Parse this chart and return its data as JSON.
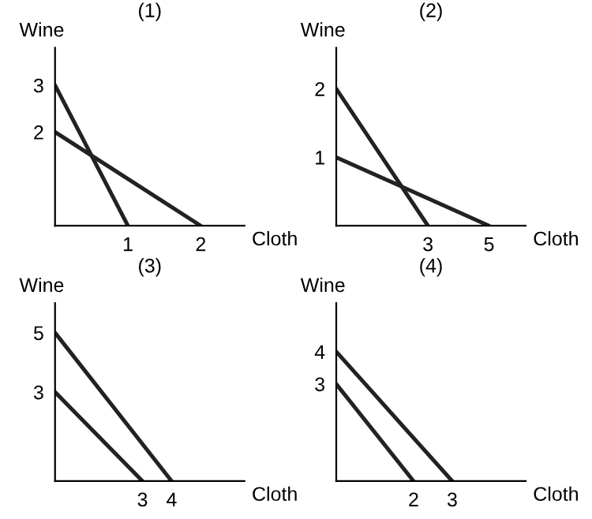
{
  "chart_data": [
    {
      "type": "line",
      "title": "(1)",
      "xlabel": "Cloth",
      "ylabel": "Wine",
      "xlim": [
        0,
        2.6
      ],
      "ylim": [
        0,
        3.8
      ],
      "xticks": [
        1,
        2
      ],
      "yticks": [
        2,
        3
      ],
      "grid": false,
      "legend": false,
      "marker": "none",
      "line_style": "solid",
      "series": [
        {
          "color": "#222222",
          "x": [
            0,
            1
          ],
          "values": [
            3,
            0
          ]
        },
        {
          "color": "#222222",
          "x": [
            0,
            2
          ],
          "values": [
            2,
            0
          ]
        }
      ]
    },
    {
      "type": "line",
      "title": "(2)",
      "xlabel": "Cloth",
      "ylabel": "Wine",
      "xlim": [
        0,
        6.2
      ],
      "ylim": [
        0,
        2.6
      ],
      "xticks": [
        3,
        5
      ],
      "yticks": [
        1,
        2
      ],
      "grid": false,
      "legend": false,
      "marker": "none",
      "line_style": "solid",
      "series": [
        {
          "color": "#222222",
          "x": [
            0,
            3
          ],
          "values": [
            2,
            0
          ]
        },
        {
          "color": "#222222",
          "x": [
            0,
            5
          ],
          "values": [
            1,
            0
          ]
        }
      ]
    },
    {
      "type": "line",
      "title": "(3)",
      "xlabel": "Cloth",
      "ylabel": "Wine",
      "xlim": [
        0,
        6.5
      ],
      "ylim": [
        0,
        6
      ],
      "xticks": [
        3,
        4
      ],
      "yticks": [
        3,
        5
      ],
      "grid": false,
      "legend": false,
      "marker": "none",
      "line_style": "solid",
      "series": [
        {
          "color": "#222222",
          "x": [
            0,
            4
          ],
          "values": [
            5,
            0
          ]
        },
        {
          "color": "#222222",
          "x": [
            0,
            3
          ],
          "values": [
            3,
            0
          ]
        }
      ]
    },
    {
      "type": "line",
      "title": "(4)",
      "xlabel": "Cloth",
      "ylabel": "Wine",
      "xlim": [
        0,
        4.9
      ],
      "ylim": [
        0,
        5.5
      ],
      "xticks": [
        2,
        3
      ],
      "yticks": [
        3,
        4
      ],
      "grid": false,
      "legend": false,
      "marker": "none",
      "line_style": "solid",
      "series": [
        {
          "color": "#222222",
          "x": [
            0,
            3
          ],
          "values": [
            4,
            0
          ]
        },
        {
          "color": "#222222",
          "x": [
            0,
            2
          ],
          "values": [
            3,
            0
          ]
        }
      ]
    }
  ]
}
